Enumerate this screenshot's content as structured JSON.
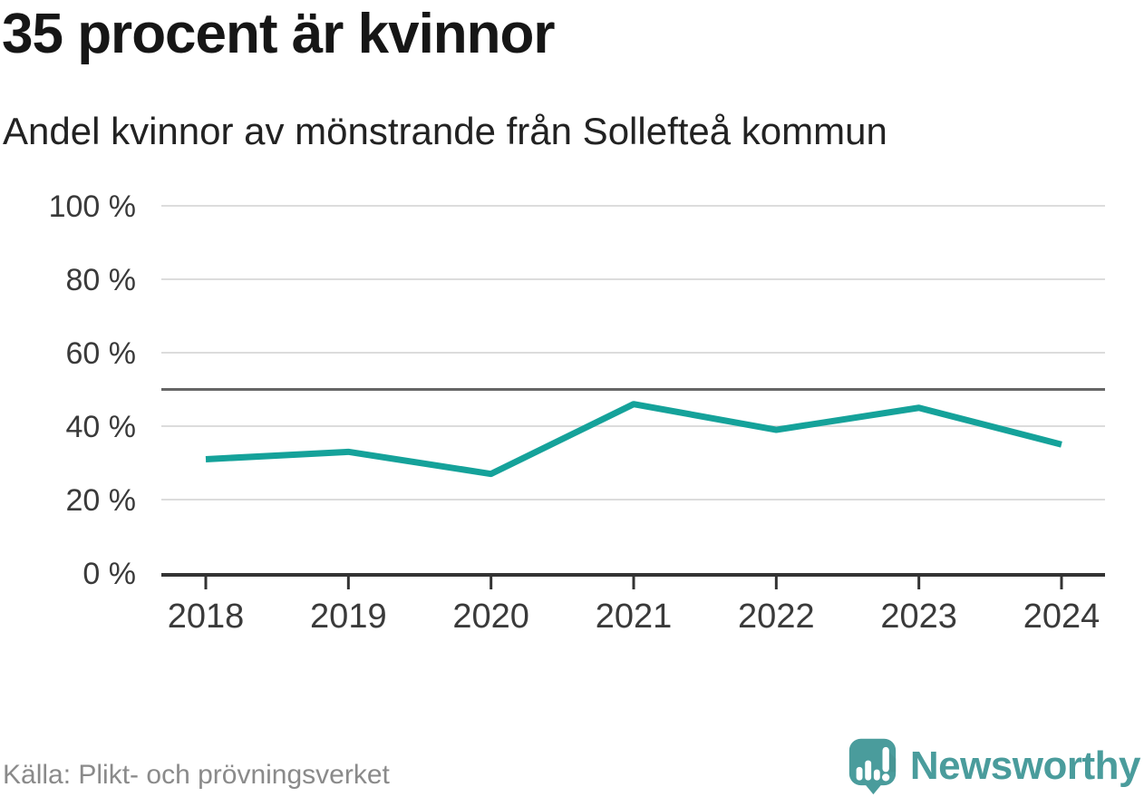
{
  "header": {
    "title": "35 procent är kvinnor",
    "subtitle": "Andel kvinnor av mönstrande från Sollefteå kommun"
  },
  "chart_data": {
    "type": "line",
    "title": "35 procent är kvinnor",
    "subtitle": "Andel kvinnor av mönstrande från Sollefteå kommun",
    "x": [
      "2018",
      "2019",
      "2020",
      "2021",
      "2022",
      "2023",
      "2024"
    ],
    "series": [
      {
        "name": "Andel kvinnor av mönstrande",
        "values": [
          31,
          33,
          27,
          46,
          39,
          45,
          35
        ]
      }
    ],
    "unit": "%",
    "ylim": [
      0,
      100
    ],
    "yticks": [
      0,
      20,
      40,
      60,
      80,
      100
    ],
    "ytick_suffix": " %",
    "reference_line_value": 50,
    "grid": true,
    "legend": "none",
    "colors": {
      "line": "#15a29a",
      "reference_line": "#666666",
      "gridline": "#dcdcdc",
      "axis": "#333333",
      "tick_label": "#3a3a3a"
    }
  },
  "footer": {
    "source": "Källa: Plikt- och prövningsverket",
    "brand": "Newsworthy",
    "brand_color": "#4a9c9c"
  }
}
